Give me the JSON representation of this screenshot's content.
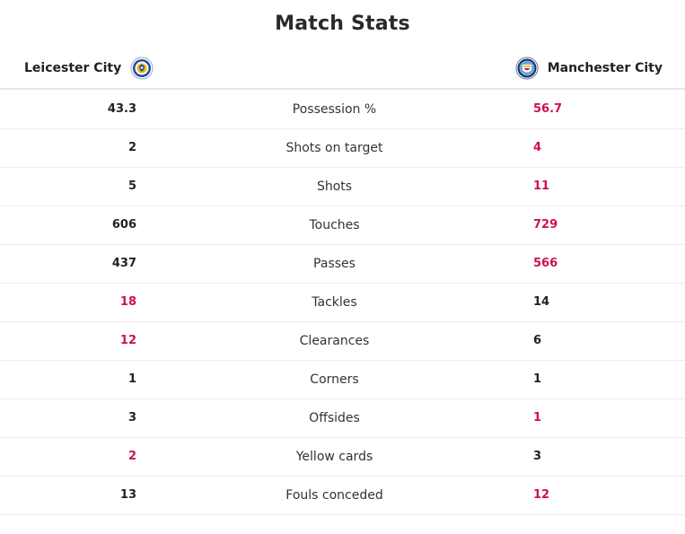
{
  "title": "Match Stats",
  "teams": {
    "home": {
      "name": "Leicester City",
      "crest_icon": "leicester-crest-icon",
      "crest_color": "#1d4ea3"
    },
    "away": {
      "name": "Manchester City",
      "crest_icon": "manchester-city-crest-icon",
      "crest_color": "#6cabdd"
    }
  },
  "colors": {
    "leader": "#d0104a",
    "default": "#222222"
  },
  "stats": [
    {
      "label": "Possession %",
      "home": "43.3",
      "away": "56.7",
      "leader": "away"
    },
    {
      "label": "Shots on target",
      "home": "2",
      "away": "4",
      "leader": "away"
    },
    {
      "label": "Shots",
      "home": "5",
      "away": "11",
      "leader": "away"
    },
    {
      "label": "Touches",
      "home": "606",
      "away": "729",
      "leader": "away"
    },
    {
      "label": "Passes",
      "home": "437",
      "away": "566",
      "leader": "away"
    },
    {
      "label": "Tackles",
      "home": "18",
      "away": "14",
      "leader": "home"
    },
    {
      "label": "Clearances",
      "home": "12",
      "away": "6",
      "leader": "home"
    },
    {
      "label": "Corners",
      "home": "1",
      "away": "1",
      "leader": "none"
    },
    {
      "label": "Offsides",
      "home": "3",
      "away": "1",
      "leader": "away"
    },
    {
      "label": "Yellow cards",
      "home": "2",
      "away": "3",
      "leader": "home"
    },
    {
      "label": "Fouls conceded",
      "home": "13",
      "away": "12",
      "leader": "away"
    }
  ]
}
